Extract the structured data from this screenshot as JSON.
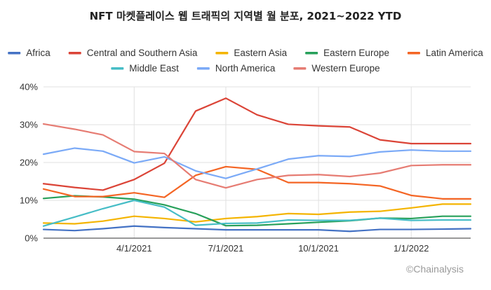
{
  "chart_data": {
    "type": "line",
    "title": "NFT 마켓플레이스 웹 트래픽의 지역별 월 분포, 2021~2022 YTD",
    "xlabel": "",
    "ylabel": "",
    "x": [
      "2021-01-01",
      "2021-02-01",
      "2021-03-01",
      "2021-04-01",
      "2021-05-01",
      "2021-06-01",
      "2021-07-01",
      "2021-08-01",
      "2021-09-01",
      "2021-10-01",
      "2021-11-01",
      "2021-12-01",
      "2022-01-01",
      "2022-02-01",
      "2022-03-01"
    ],
    "xlim": [
      "2021-01-01",
      "2022-03-01"
    ],
    "x_ticks": [
      {
        "value": "2021-04-01",
        "label": "4/1/2021"
      },
      {
        "value": "2021-07-01",
        "label": "7/1/2021"
      },
      {
        "value": "2021-10-01",
        "label": "10/1/2021"
      },
      {
        "value": "2022-01-01",
        "label": "1/1/2022"
      }
    ],
    "ylim": [
      0,
      40
    ],
    "y_ticks": [
      {
        "value": 0,
        "label": "0%"
      },
      {
        "value": 10,
        "label": "10%"
      },
      {
        "value": 20,
        "label": "20%"
      },
      {
        "value": 30,
        "label": "30%"
      },
      {
        "value": 40,
        "label": "40%"
      }
    ],
    "grid": "both",
    "legend_position": "top",
    "series": [
      {
        "name": "Africa",
        "color": "#4472C4",
        "values": [
          2.3,
          2.0,
          2.5,
          3.2,
          2.8,
          2.5,
          2.2,
          2.2,
          2.2,
          2.2,
          1.8,
          2.3,
          2.3,
          2.4,
          2.5
        ]
      },
      {
        "name": "Central and Southern Asia",
        "color": "#DB4437",
        "values": [
          14.4,
          13.4,
          12.7,
          15.5,
          19.8,
          33.6,
          37.0,
          32.6,
          30.1,
          29.7,
          29.4,
          26.0,
          25.0,
          25.0,
          25.0
        ]
      },
      {
        "name": "Eastern Asia",
        "color": "#F4B400",
        "values": [
          4.0,
          3.8,
          4.5,
          5.8,
          5.2,
          4.3,
          5.2,
          5.7,
          6.5,
          6.3,
          6.9,
          7.1,
          8.0,
          9.0,
          9.0
        ]
      },
      {
        "name": "Eastern Europe",
        "color": "#27A05A",
        "values": [
          10.5,
          11.2,
          10.9,
          10.3,
          8.8,
          6.5,
          3.3,
          3.4,
          3.8,
          4.2,
          4.6,
          5.3,
          5.2,
          5.8,
          5.8
        ]
      },
      {
        "name": "Latin America",
        "color": "#F46524",
        "values": [
          13.0,
          11.0,
          11.0,
          12.0,
          10.8,
          16.6,
          18.9,
          18.2,
          14.7,
          14.7,
          14.4,
          13.8,
          11.3,
          10.4,
          10.4
        ]
      },
      {
        "name": "Middle East",
        "color": "#46BDC6",
        "values": [
          3.2,
          5.6,
          7.8,
          10.0,
          8.2,
          3.4,
          3.9,
          4.0,
          4.8,
          4.7,
          4.7,
          5.3,
          4.7,
          4.8,
          4.8
        ]
      },
      {
        "name": "North America",
        "color": "#7BAAF7",
        "values": [
          22.2,
          23.8,
          23.0,
          19.9,
          21.5,
          17.8,
          15.8,
          18.3,
          20.9,
          21.8,
          21.6,
          22.8,
          23.3,
          23.0,
          23.0
        ]
      },
      {
        "name": "Western Europe",
        "color": "#E67C73",
        "values": [
          30.2,
          28.8,
          27.3,
          22.9,
          22.4,
          15.5,
          13.3,
          15.5,
          16.6,
          16.8,
          16.3,
          17.2,
          19.2,
          19.4,
          19.4
        ]
      }
    ]
  },
  "watermark": {
    "text": "©Chainalysis"
  }
}
